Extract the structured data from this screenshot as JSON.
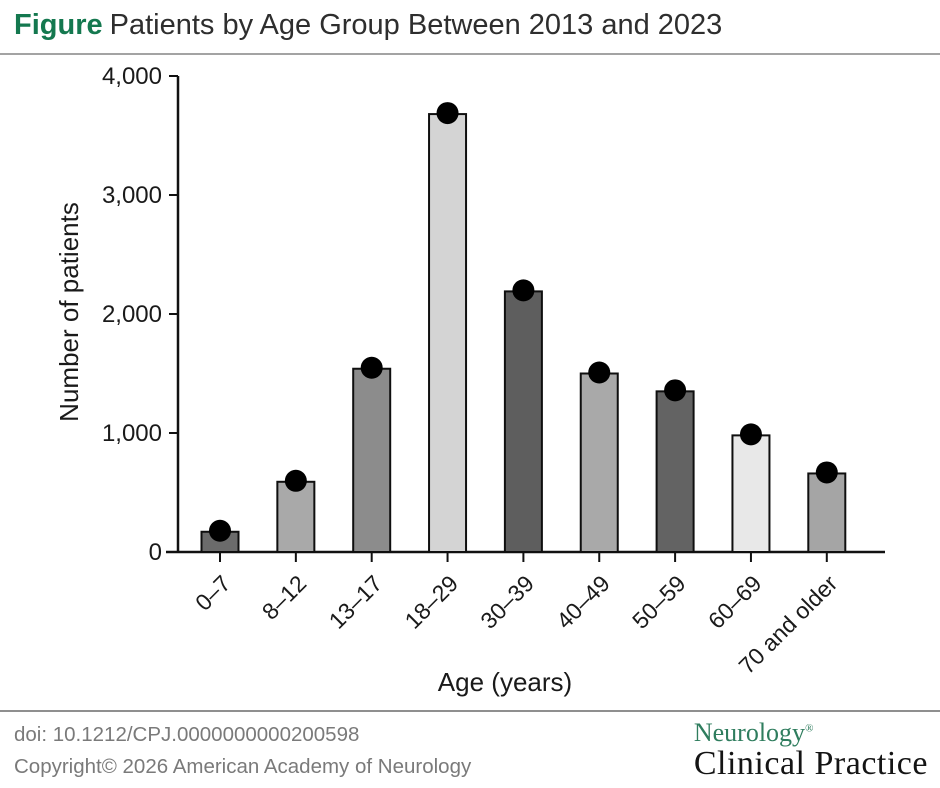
{
  "header": {
    "figure_label": "Figure",
    "title": "Patients by Age Group Between 2013 and 2023"
  },
  "chart_data": {
    "type": "bar",
    "title": "Patients by Age Group Between 2013 and 2023",
    "xlabel": "Age (years)",
    "ylabel": "Number of patients",
    "categories": [
      "0–7",
      "8–12",
      "13–17",
      "18–29",
      "30–39",
      "40–49",
      "50–59",
      "60–69",
      "70 and older"
    ],
    "values": [
      170,
      590,
      1540,
      3680,
      2190,
      1500,
      1350,
      980,
      660
    ],
    "bar_colors": [
      "#6b6b6b",
      "#a9a9a9",
      "#8c8c8c",
      "#d4d4d4",
      "#5e5e5e",
      "#a9a9a9",
      "#636363",
      "#e8e8e8",
      "#a5a5a5"
    ],
    "marker": "black circle centered on each bar top",
    "marker_color": "#000000",
    "bar_outline_color": "#0f0f0f",
    "axis_color": "#111111",
    "ylim": [
      0,
      4000
    ],
    "y_ticks": [
      {
        "value": 0,
        "label": "0"
      },
      {
        "value": 1000,
        "label": "1,000"
      },
      {
        "value": 2000,
        "label": "2,000"
      },
      {
        "value": 3000,
        "label": "3,000"
      },
      {
        "value": 4000,
        "label": "4,000"
      }
    ],
    "grid": false,
    "legend": null
  },
  "footer": {
    "doi": "doi: 10.1212/CPJ.0000000000200598",
    "copyright": "Copyright© 2026 American Academy of Neurology",
    "logo": {
      "line1": "Neurology",
      "registered": "®",
      "line2": "Clinical Practice"
    }
  },
  "colors": {
    "figure_label_green": "#14784f",
    "logo_green": "#2f7d5e",
    "title_text": "#2e2e2e",
    "footer_text": "#7a7a7a",
    "rule_gray": "#a3a3a3"
  }
}
